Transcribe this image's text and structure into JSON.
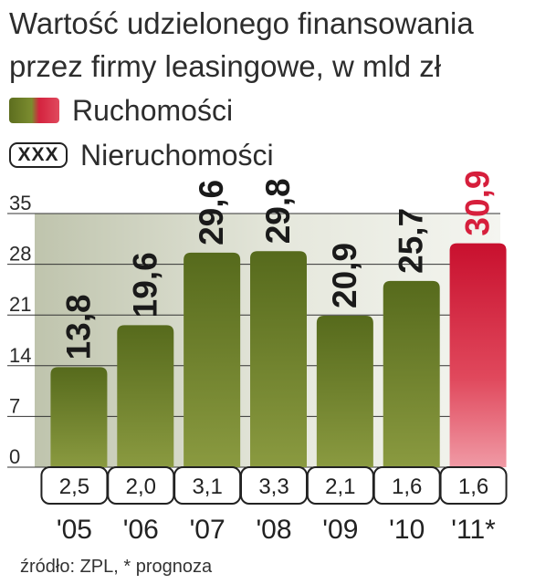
{
  "title": {
    "line1": "Wartość udzielonego finansowania",
    "line2": "przez firmy leasingowe, w mld zł"
  },
  "legend": {
    "movables_label": "Ruchomości",
    "real_estate_label": "Nieruchomości",
    "real_estate_sample": "XXX"
  },
  "footer": "źródło: ZPL, * prognoza",
  "colors": {
    "bar_olive_dark": "#566a1c",
    "bar_olive_light": "#7e8f33",
    "bar_forecast_red": "#d61f3c",
    "plot_background": "#d9dccd"
  },
  "chart_data": {
    "type": "bar",
    "categories": [
      "'05",
      "'06",
      "'07",
      "'08",
      "'09",
      "'10",
      "'11*"
    ],
    "series": [
      {
        "name": "Ruchomości",
        "values": [
          13.8,
          19.6,
          29.6,
          29.8,
          20.9,
          25.7,
          30.9
        ],
        "value_labels": [
          "13,8",
          "19,6",
          "29,6",
          "29,8",
          "20,9",
          "25,7",
          "30,9"
        ]
      },
      {
        "name": "Nieruchomości",
        "values": [
          2.5,
          2.0,
          3.1,
          3.3,
          2.1,
          1.6,
          1.6
        ],
        "value_labels": [
          "2,5",
          "2,0",
          "3,1",
          "3,3",
          "2,1",
          "1,6",
          "1,6"
        ]
      }
    ],
    "forecast_category": "'11*",
    "y_ticks": [
      0,
      7,
      14,
      21,
      28,
      35
    ],
    "ylim": [
      0,
      35
    ],
    "grid": true,
    "legend_position": "top-left"
  }
}
